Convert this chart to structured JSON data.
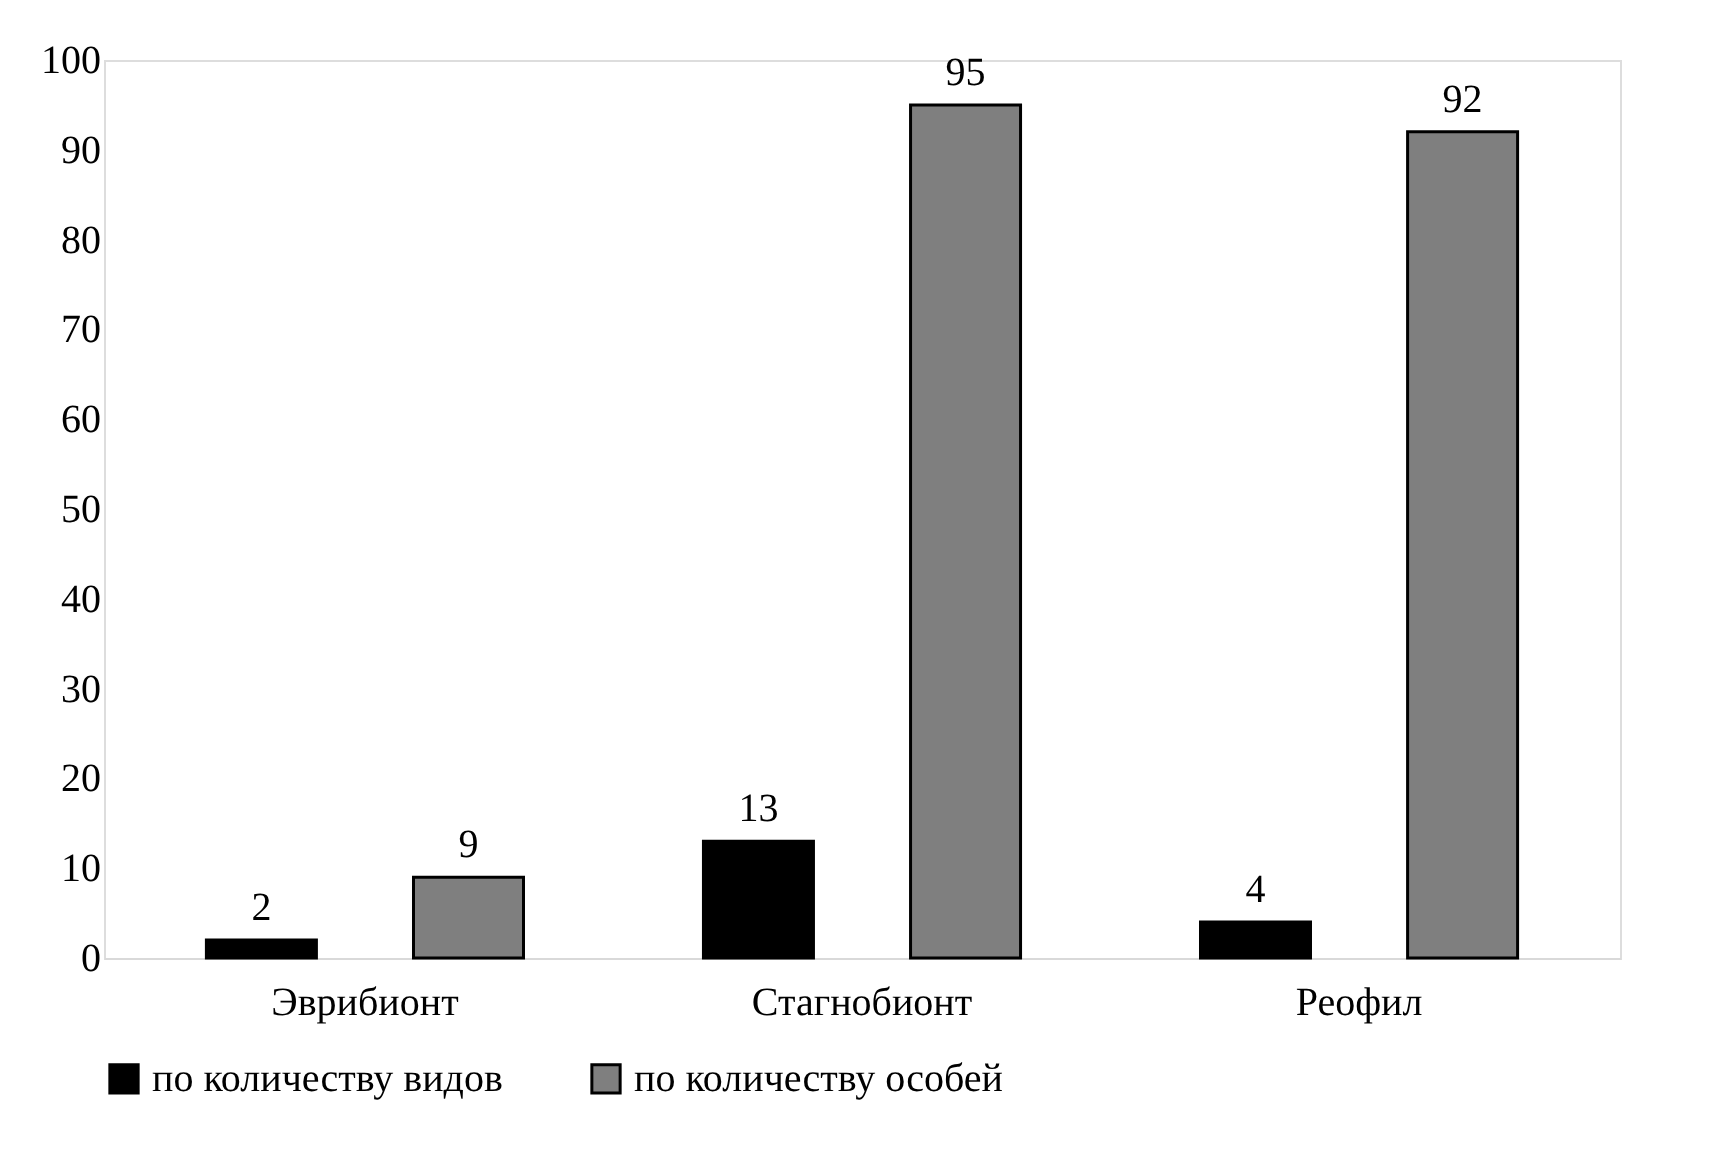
{
  "chart_data": {
    "type": "bar",
    "categories": [
      "Эврибионт",
      "Стагнобионт",
      "Реофил"
    ],
    "series": [
      {
        "name": "по количеству видов",
        "color": "#000000",
        "values": [
          2,
          13,
          4
        ]
      },
      {
        "name": "по количеству особей",
        "color": "#7f7f7f",
        "values": [
          9,
          95,
          92
        ]
      }
    ],
    "ylim": [
      0,
      100
    ],
    "yticks": [
      0,
      10,
      20,
      30,
      40,
      50,
      60,
      70,
      80,
      90,
      100
    ],
    "grid": false,
    "legend": "bottom",
    "data_labels": true
  }
}
